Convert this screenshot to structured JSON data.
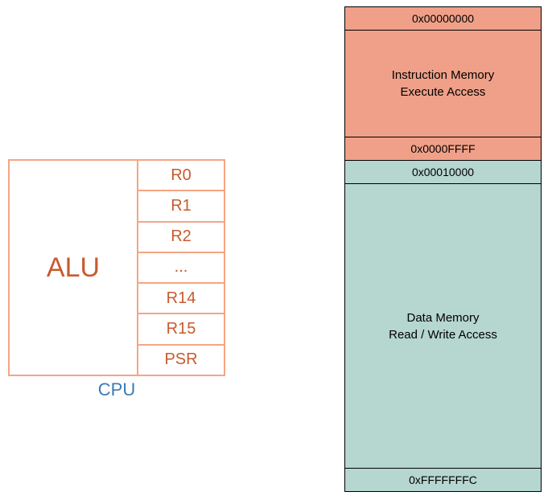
{
  "cpu": {
    "border_color": "#f5a584",
    "alu_label": "ALU",
    "alu_color": "#c85a2e",
    "label": "CPU",
    "label_color": "#3c7ab5",
    "registers": [
      "R0",
      "R1",
      "R2",
      "...",
      "R14",
      "R15",
      "PSR"
    ],
    "reg_color": "#c85a2e"
  },
  "memory": {
    "instruction": {
      "bg_color": "#f0a088",
      "start_addr": "0x00000000",
      "title_line1": "Instruction Memory",
      "title_line2": "Execute Access",
      "end_addr": "0x0000FFFF"
    },
    "data": {
      "bg_color": "#b6d6d0",
      "start_addr": "0x00010000",
      "title_line1": "Data Memory",
      "title_line2": "Read / Write Access",
      "end_addr": "0xFFFFFFFC"
    },
    "text_color": "#000000"
  }
}
